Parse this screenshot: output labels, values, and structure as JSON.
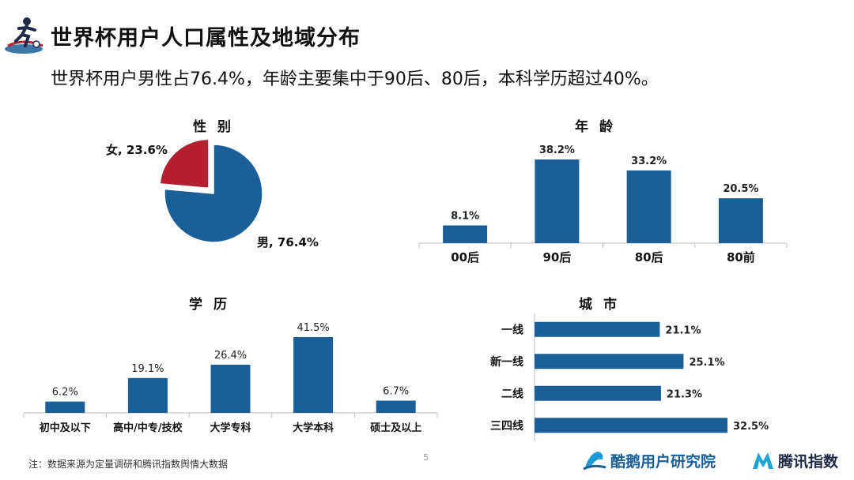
{
  "header": {
    "title": "世界杯用户人口属性及地域分布",
    "subtitle": "世界杯用户男性占76.4%，年龄主要集中于90后、80后，本科学历超过40%。",
    "logo_icon": "soccer-player-icon"
  },
  "colors": {
    "primary": "#1a5f98",
    "accent": "#b5202e",
    "axis": "#bfbfbf"
  },
  "chart_data": [
    {
      "id": "gender",
      "type": "pie",
      "title": "性 别",
      "labels": [
        "男",
        "女"
      ],
      "values": [
        76.4,
        23.6
      ],
      "data_labels": [
        "男, 76.4%",
        "女, 23.6%"
      ],
      "colors": [
        "#1a5f98",
        "#b5202e"
      ],
      "exploded": "女"
    },
    {
      "id": "age",
      "type": "bar",
      "title": "年 龄",
      "categories": [
        "00后",
        "90后",
        "80后",
        "80前"
      ],
      "values": [
        8.1,
        38.2,
        33.2,
        20.5
      ],
      "data_labels": [
        "8.1%",
        "38.2%",
        "33.2%",
        "20.5%"
      ]
    },
    {
      "id": "education",
      "type": "bar",
      "title": "学 历",
      "categories": [
        "初中及以下",
        "高中/中专/技校",
        "大学专科",
        "大学本科",
        "硕士及以上"
      ],
      "values": [
        6.2,
        19.1,
        26.4,
        41.5,
        6.7
      ],
      "data_labels": [
        "6.2%",
        "19.1%",
        "26.4%",
        "41.5%",
        "6.7%"
      ]
    },
    {
      "id": "city",
      "type": "bar",
      "orientation": "horizontal",
      "title": "城 市",
      "categories": [
        "一线",
        "新一线",
        "二线",
        "三四线"
      ],
      "values": [
        21.1,
        25.1,
        21.3,
        32.5
      ],
      "data_labels": [
        "21.1%",
        "25.1%",
        "21.3%",
        "32.5%"
      ]
    }
  ],
  "footer": {
    "note": "注：数据来源为定量调研和腾讯指数舆情大数据",
    "page_number": "5",
    "brand_left": "酷鹅用户研究院",
    "brand_right": "腾讯指数"
  }
}
